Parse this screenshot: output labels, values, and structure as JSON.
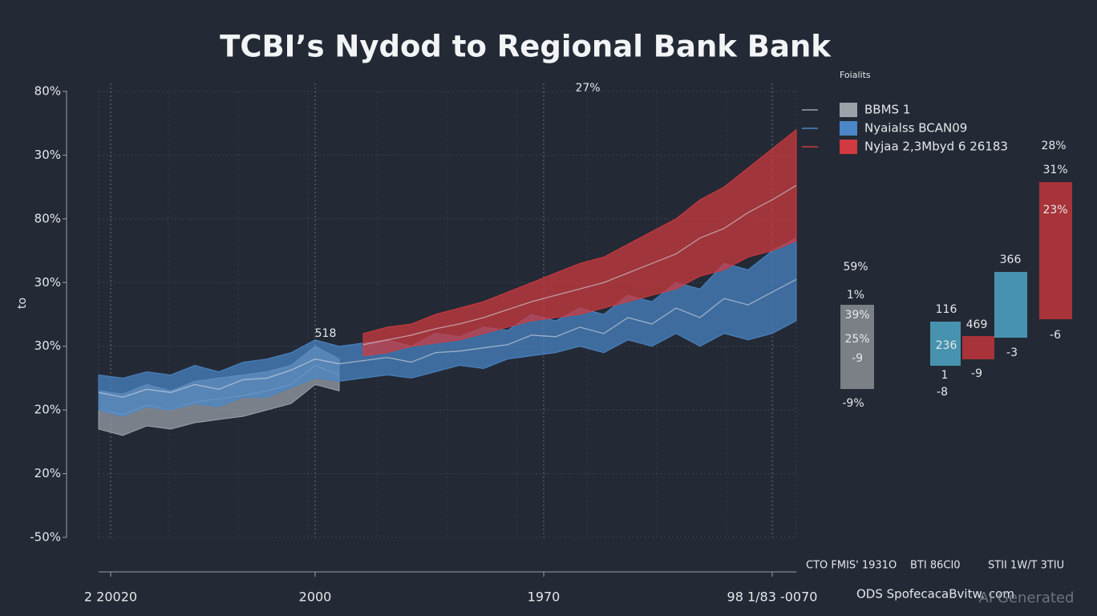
{
  "chart_data": {
    "type": "range_area",
    "title": "TCBI’s Nydod to Regional Bank Bank",
    "y_label": "to",
    "annotations": [
      {
        "text": "27%"
      },
      {
        "text": "518"
      }
    ],
    "xlim": [
      0,
      29
    ],
    "xticks": [
      {
        "value": 0.5,
        "label": "2 20020"
      },
      {
        "value": 9,
        "label": "2000"
      },
      {
        "value": 18.5,
        "label": "1970"
      },
      {
        "value": 28,
        "label": "98 1/83 -0070"
      }
    ],
    "ylim": [
      0,
      7
    ],
    "yticks": [
      {
        "value": 0,
        "label": "-50%"
      },
      {
        "value": 1,
        "label": "20%"
      },
      {
        "value": 2,
        "label": "20%"
      },
      {
        "value": 3,
        "label": "30%"
      },
      {
        "value": 4,
        "label": "30%"
      },
      {
        "value": 5,
        "label": "80%"
      },
      {
        "value": 6,
        "label": "30%"
      },
      {
        "value": 7,
        "label": "80%"
      }
    ],
    "grid": true,
    "legend_title": "Foialits",
    "legend_position": "upper right",
    "series": [
      {
        "name": "BBMS 1",
        "color": "#9aa2aa",
        "high": [
          2.3,
          2.25,
          2.4,
          2.3,
          2.45,
          2.5,
          2.55,
          2.6,
          2.7,
          3.0,
          2.8,
          null,
          null,
          null,
          null,
          null,
          null,
          null,
          null,
          null,
          null,
          null,
          null,
          null,
          null,
          null,
          null,
          null,
          null,
          null
        ],
        "low": [
          1.7,
          1.6,
          1.75,
          1.7,
          1.8,
          1.85,
          1.9,
          2.0,
          2.1,
          2.4,
          2.3,
          null,
          null,
          null,
          null,
          null,
          null,
          null,
          null,
          null,
          null,
          null,
          null,
          null,
          null,
          null,
          null,
          null,
          null,
          null
        ]
      },
      {
        "name": "Nyaialss BCAN09",
        "color": "#4a86c8",
        "high": [
          2.55,
          2.5,
          2.6,
          2.55,
          2.7,
          2.6,
          2.75,
          2.8,
          2.9,
          3.1,
          3.0,
          3.05,
          3.1,
          3.0,
          3.2,
          3.15,
          3.3,
          3.25,
          3.5,
          3.4,
          3.6,
          3.5,
          3.8,
          3.7,
          4.0,
          3.9,
          4.3,
          4.2,
          4.5,
          4.7
        ],
        "low": [
          2.0,
          1.9,
          2.05,
          2.0,
          2.1,
          2.05,
          2.2,
          2.2,
          2.35,
          2.5,
          2.45,
          2.5,
          2.55,
          2.5,
          2.6,
          2.7,
          2.65,
          2.8,
          2.85,
          2.9,
          3.0,
          2.9,
          3.1,
          3.0,
          3.2,
          3.0,
          3.2,
          3.1,
          3.2,
          3.4
        ]
      },
      {
        "name": "Nyjaa 2,3Mbyd 6 26183",
        "color": "#d03a40",
        "high": [
          null,
          null,
          null,
          null,
          null,
          null,
          null,
          null,
          null,
          null,
          null,
          3.2,
          3.3,
          3.35,
          3.5,
          3.6,
          3.7,
          3.85,
          4.0,
          4.15,
          4.3,
          4.4,
          4.6,
          4.8,
          5.0,
          5.3,
          5.5,
          5.8,
          6.1,
          6.4
        ],
        "low": [
          null,
          null,
          null,
          null,
          null,
          null,
          null,
          null,
          null,
          null,
          null,
          2.85,
          2.9,
          3.0,
          3.05,
          3.1,
          3.2,
          3.3,
          3.4,
          3.45,
          3.5,
          3.6,
          3.7,
          3.8,
          3.9,
          4.1,
          4.2,
          4.4,
          4.5,
          4.65
        ]
      }
    ],
    "side_panel": [
      {
        "color": "#8a8f94",
        "labels": [
          "59%",
          "1%",
          "39%",
          "25%",
          "-9",
          "-9%"
        ]
      },
      {
        "color": "#4ea6c4",
        "labels": [
          "116",
          "236",
          "1",
          "-8"
        ]
      },
      {
        "color": "#c0353a",
        "labels": [
          "469",
          "-9"
        ]
      },
      {
        "color": "#4ea6c4",
        "labels": [
          "366",
          "-3"
        ]
      },
      {
        "color": "#c0353a",
        "labels": [
          "28%",
          "31%",
          "23%",
          "-6"
        ]
      }
    ],
    "footer": [
      "CTO FMIS' 1931O",
      "BTI 86CI0",
      "STII 1W/T 3TIU"
    ],
    "source": "ODS SpofecacaBvitw. com",
    "watermark": "AI Generated"
  }
}
